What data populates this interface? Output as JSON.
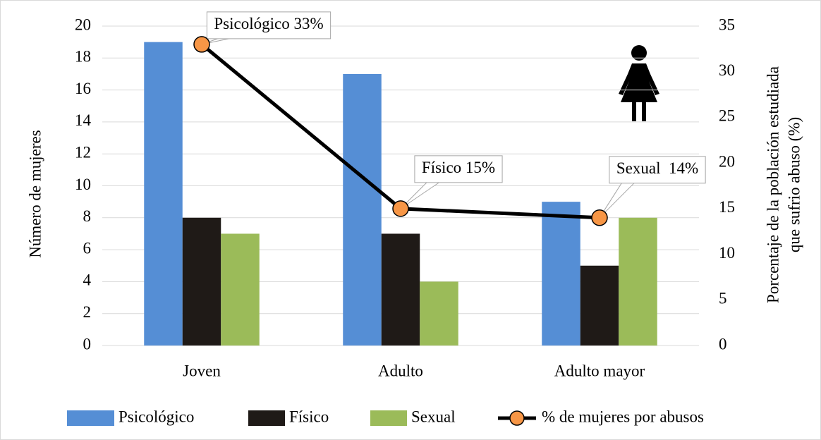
{
  "chart_data": {
    "type": "bar",
    "categories": [
      "Joven",
      "Adulto",
      "Adulto mayor"
    ],
    "ylabel": "Número de mujeres",
    "y2label": [
      "Porcentaje de la población estudiada",
      "que sufrio abuso (%)"
    ],
    "series": [
      {
        "name": "Psicológico",
        "color": "#558ed5",
        "values": [
          19,
          17,
          9
        ]
      },
      {
        "name": "Físico",
        "color": "#1f1a17",
        "values": [
          8,
          7,
          5
        ]
      },
      {
        "name": "Sexual",
        "color": "#9bbb59",
        "values": [
          7,
          4,
          8
        ]
      },
      {
        "name": "% de mujeres por abusos",
        "type": "line",
        "axis": "y2",
        "color": "#000000",
        "marker_color": "#f79646",
        "values": [
          33,
          15,
          14
        ],
        "value_labels": [
          "Psicológico 33%",
          "Físico 15%",
          "Sexual  14%"
        ]
      }
    ],
    "ylim": [
      0,
      20
    ],
    "yticks": [
      0,
      2,
      4,
      6,
      8,
      10,
      12,
      14,
      16,
      18,
      20
    ],
    "y2lim": [
      0,
      35
    ],
    "y2ticks": [
      0,
      5,
      10,
      15,
      20,
      25,
      30,
      35
    ],
    "grid": true,
    "legend": "bottom"
  }
}
